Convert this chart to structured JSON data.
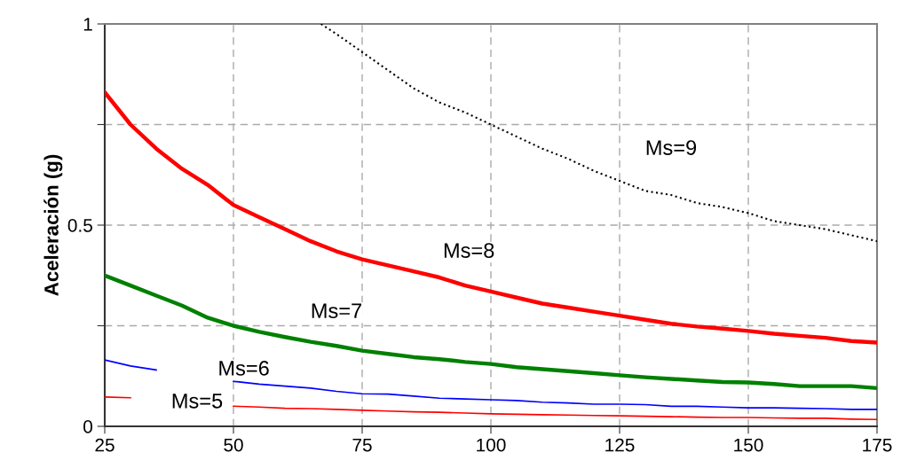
{
  "chart_data": {
    "type": "line",
    "ylabel": "Aceleración (g)",
    "x": [
      25,
      30,
      35,
      40,
      45,
      50,
      55,
      60,
      65,
      70,
      75,
      80,
      85,
      90,
      95,
      100,
      105,
      110,
      115,
      120,
      125,
      130,
      135,
      140,
      145,
      150,
      155,
      160,
      165,
      170,
      175
    ],
    "xlim": [
      25,
      175
    ],
    "xticks": [
      25,
      50,
      75,
      100,
      125,
      150,
      175
    ],
    "ylim": [
      0,
      1
    ],
    "yticks": [
      0,
      {
        "value": 0.25,
        "label": null
      },
      0.5,
      {
        "value": 0.75,
        "label": null
      },
      1
    ],
    "grid": true,
    "legend": false,
    "series": [
      {
        "name": "Ms=9",
        "color": "#000000",
        "line_style": "dotted",
        "x": [
          67,
          70,
          75,
          80,
          85,
          90,
          95,
          100,
          105,
          110,
          115,
          120,
          125,
          130,
          135,
          140,
          145,
          150,
          155,
          160,
          165,
          170,
          175
        ],
        "values": [
          1.0,
          0.975,
          0.93,
          0.885,
          0.84,
          0.805,
          0.78,
          0.75,
          0.72,
          0.69,
          0.665,
          0.635,
          0.61,
          0.585,
          0.575,
          0.555,
          0.545,
          0.53,
          0.51,
          0.5,
          0.49,
          0.475,
          0.46
        ]
      },
      {
        "name": "Ms=8",
        "color": "#ff0000",
        "values": [
          0.83,
          0.75,
          0.69,
          0.64,
          0.6,
          0.55,
          0.52,
          0.49,
          0.46,
          0.435,
          0.415,
          0.4,
          0.385,
          0.37,
          0.35,
          0.335,
          0.32,
          0.305,
          0.295,
          0.285,
          0.275,
          0.265,
          0.255,
          0.248,
          0.243,
          0.237,
          0.23,
          0.225,
          0.22,
          0.212,
          0.208
        ]
      },
      {
        "name": "Ms=7",
        "color": "#008000",
        "values": [
          0.375,
          0.35,
          0.325,
          0.3,
          0.27,
          0.25,
          0.235,
          0.222,
          0.21,
          0.2,
          0.188,
          0.18,
          0.172,
          0.167,
          0.16,
          0.155,
          0.147,
          0.142,
          0.137,
          0.132,
          0.127,
          0.122,
          0.118,
          0.114,
          0.11,
          0.109,
          0.105,
          0.1,
          0.1,
          0.1,
          0.095
        ]
      },
      {
        "name": "Ms=6",
        "color": "#0000ff",
        "values": [
          0.165,
          0.15,
          0.14,
          null,
          null,
          0.112,
          0.105,
          0.1,
          0.095,
          0.087,
          0.081,
          0.08,
          0.075,
          0.07,
          0.068,
          0.066,
          0.064,
          0.06,
          0.058,
          0.055,
          0.055,
          0.054,
          0.05,
          0.05,
          0.048,
          0.046,
          0.046,
          0.045,
          0.044,
          0.042,
          0.042
        ]
      },
      {
        "name": "Ms=5",
        "color": "#ff0000",
        "values": [
          0.073,
          0.071,
          null,
          null,
          null,
          0.05,
          0.048,
          0.045,
          0.044,
          0.042,
          0.04,
          0.038,
          0.036,
          0.035,
          0.033,
          0.031,
          0.03,
          0.029,
          0.028,
          0.027,
          0.026,
          0.025,
          0.024,
          0.023,
          0.022,
          0.022,
          0.021,
          0.02,
          0.02,
          0.018,
          0.017
        ]
      }
    ]
  }
}
